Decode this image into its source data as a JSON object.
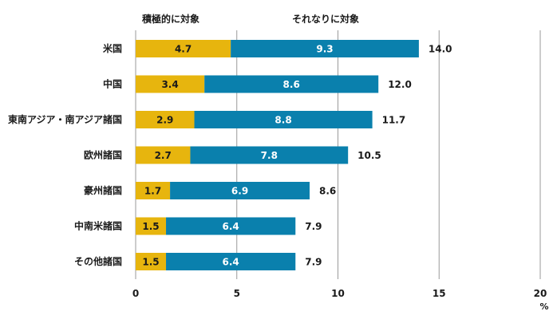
{
  "chart_data": {
    "type": "bar",
    "orientation": "horizontal",
    "stacked": true,
    "categories": [
      "米国",
      "中国",
      "東南アジア・南アジア諸国",
      "欧州諸国",
      "豪州諸国",
      "中南米諸国",
      "その他諸国"
    ],
    "series": [
      {
        "name": "積極的に対象",
        "values": [
          4.7,
          3.4,
          2.9,
          2.7,
          1.7,
          1.5,
          1.5
        ],
        "color": "#E7B50E",
        "label_color": "#1a1a1a"
      },
      {
        "name": "それなりに対象",
        "values": [
          9.3,
          8.6,
          8.8,
          7.8,
          6.9,
          6.4,
          6.4
        ],
        "color": "#0A80AD",
        "label_color": "#ffffff"
      }
    ],
    "totals": [
      "14.0",
      "12.0",
      "11.7",
      "10.5",
      "8.6",
      "7.9",
      "7.9"
    ],
    "xlim": [
      0,
      20
    ],
    "xticks": [
      "0",
      "5",
      "10",
      "15",
      "20"
    ],
    "xunit": "%",
    "grid": true,
    "legend_position": "top"
  }
}
